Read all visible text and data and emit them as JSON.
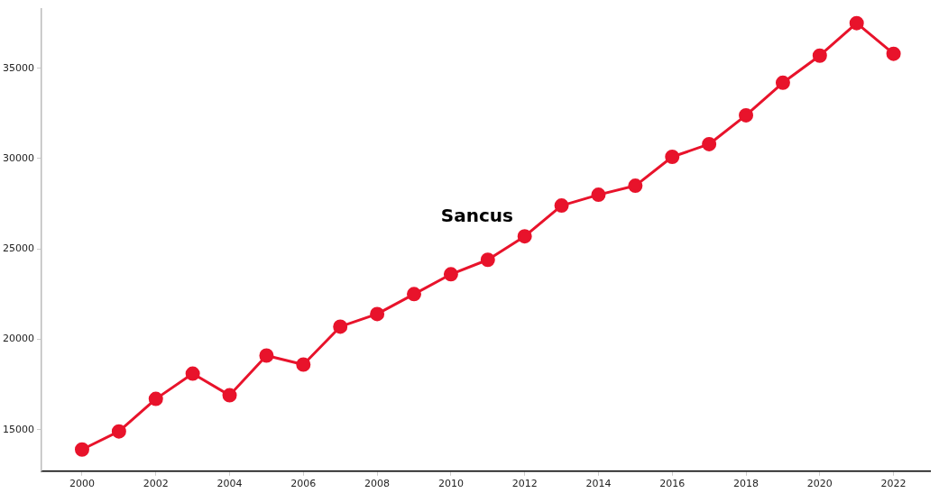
{
  "chart_data": {
    "type": "line",
    "x": [
      2000,
      2001,
      2002,
      2003,
      2004,
      2005,
      2006,
      2007,
      2008,
      2009,
      2010,
      2011,
      2012,
      2013,
      2014,
      2015,
      2016,
      2017,
      2018,
      2019,
      2020,
      2021,
      2022
    ],
    "series": [
      {
        "color": "#e8132b",
        "values": [
          13900,
          14900,
          16700,
          18100,
          16900,
          19100,
          18600,
          20700,
          21400,
          22500,
          23600,
          24400,
          25700,
          27400,
          28000,
          28500,
          30100,
          30800,
          32400,
          34200,
          35700,
          37500,
          35800
        ]
      }
    ],
    "xlim": [
      1998.9,
      2023
    ],
    "xticks": [
      2000,
      2002,
      2004,
      2006,
      2008,
      2010,
      2012,
      2014,
      2016,
      2018,
      2020,
      2022
    ],
    "ylim": [
      12700,
      38300
    ],
    "yticks": [
      15000,
      20000,
      25000,
      30000,
      35000
    ],
    "marker": "circle",
    "line_style": "solid",
    "grid": false,
    "legend": false,
    "annotations": [
      "Sancus"
    ]
  }
}
